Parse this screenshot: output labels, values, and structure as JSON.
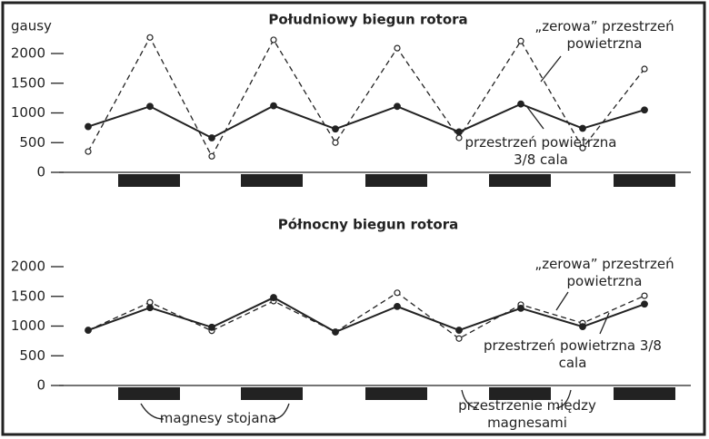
{
  "chart_data": [
    {
      "type": "line",
      "title": "Południowy biegun rotora",
      "y_label": "gausy",
      "categories": [
        null,
        null,
        null,
        null,
        null,
        null,
        null,
        null,
        null,
        null
      ],
      "ylim": [
        0,
        2300
      ],
      "yticks": [
        0,
        500,
        1000,
        1500,
        2000
      ],
      "series": [
        {
          "name": "„zerowa” przestrzeń powietrzna",
          "color": "#222",
          "style": "dashed",
          "values": [
            350,
            2270,
            270,
            2230,
            500,
            2090,
            580,
            2210,
            410,
            1740
          ]
        },
        {
          "name": "przestrzeń powietrzna 3/8 cala",
          "color": "#222",
          "style": "solid",
          "values": [
            770,
            1110,
            580,
            1120,
            730,
            1110,
            680,
            1150,
            740,
            1050
          ]
        }
      ]
    },
    {
      "type": "line",
      "title": "Północny biegun rotora",
      "categories": [
        null,
        null,
        null,
        null,
        null,
        null,
        null,
        null,
        null,
        null
      ],
      "ylim": [
        0,
        2000
      ],
      "yticks": [
        0,
        500,
        1000,
        1500,
        2000
      ],
      "series": [
        {
          "name": "„zerowa” przestrzeń powietrzna",
          "color": "#222",
          "style": "dashed",
          "values": [
            930,
            1400,
            920,
            1420,
            900,
            1560,
            790,
            1360,
            1050,
            1510
          ]
        },
        {
          "name": "przestrzeń powietrzna 3/8 cala",
          "color": "#222",
          "style": "solid",
          "values": [
            930,
            1310,
            980,
            1480,
            900,
            1330,
            930,
            1300,
            990,
            1370
          ]
        }
      ],
      "annotations": [
        "magnesy stojana",
        "przestrzenie między magnesami"
      ]
    }
  ]
}
